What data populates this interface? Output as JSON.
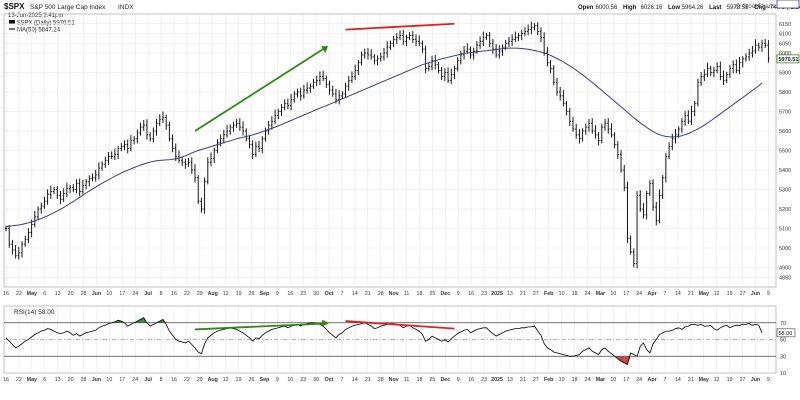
{
  "header": {
    "symbol": "$SPX",
    "name": "S&P 500 Large Cap Index",
    "exchange": "INDX",
    "watermark": "@ StockCharts.com",
    "date_line": "13-Jun-2025 2:41pm",
    "ohlc": [
      {
        "label": "Open",
        "value": "6000.56"
      },
      {
        "label": "High",
        "value": "6026.16"
      },
      {
        "label": "Low",
        "value": "5964.26"
      },
      {
        "label": "Last",
        "value": "5970.51"
      },
      {
        "label": "Chg",
        "value": "-74.75 (-1.24%)"
      }
    ],
    "legend_price": "$SPX (Daily) 5970.51",
    "legend_ma": "MA(50) 5847.24"
  },
  "rsi_panel": {
    "title": "RSI(14) 58.00",
    "last_label": "58.00"
  },
  "colors": {
    "price_bars": "#000000",
    "ma_line": "#3a3a8c",
    "rsi_line": "#000000",
    "rsi_overbought_fill": "#3e7e3e",
    "rsi_oversold_fill": "#c84040",
    "trend_up": "#2f8a14",
    "trend_div": "#e02020",
    "grid": "#e6e6e6",
    "current_price_box": "#2f8a14"
  },
  "chart_data": [
    {
      "type": "ohlc",
      "title": "$SPX S&P 500 Large Cap Index INDX",
      "ylim": [
        4800,
        6200
      ],
      "y_axis_side": "right",
      "y_ticks": [
        4850,
        4900,
        5000,
        5100,
        5200,
        5300,
        5400,
        5500,
        5600,
        5700,
        5800,
        5900,
        6000,
        6050,
        6100,
        6150
      ],
      "last_value_label": "5970.51",
      "ma_last_label": "5847.24",
      "x_ticks": [
        "16",
        "22",
        "May",
        "6",
        "13",
        "20",
        "28",
        "Jun",
        "10",
        "17",
        "24",
        "Jul",
        "8",
        "16",
        "22",
        "29",
        "Aug",
        "12",
        "19",
        "26",
        "Sep",
        "9",
        "16",
        "23",
        "30",
        "Oct",
        "7",
        "14",
        "21",
        "28",
        "Nov",
        "11",
        "18",
        "25",
        "Dec",
        "9",
        "16",
        "23",
        "2025",
        "13",
        "21",
        "27",
        "Feb",
        "10",
        "18",
        "24",
        "Mar",
        "10",
        "17",
        "24",
        "Apr",
        "7",
        "14",
        "21",
        "May",
        "12",
        "19",
        "27",
        "Jun",
        "9"
      ],
      "x_tick_bold": [
        "May",
        "Jun",
        "Jul",
        "Aug",
        "Sep",
        "Oct",
        "Nov",
        "Dec",
        "2025",
        "Feb",
        "Mar",
        "Apr",
        "May",
        "Jun"
      ],
      "close": [
        5100,
        5020,
        4990,
        4960,
        4975,
        5020,
        5045,
        5080,
        5120,
        5160,
        5200,
        5215,
        5240,
        5275,
        5290,
        5300,
        5270,
        5250,
        5280,
        5305,
        5310,
        5300,
        5330,
        5290,
        5320,
        5340,
        5355,
        5360,
        5375,
        5410,
        5430,
        5450,
        5470,
        5470,
        5480,
        5510,
        5520,
        5530,
        5510,
        5550,
        5560,
        5590,
        5620,
        5630,
        5580,
        5560,
        5600,
        5640,
        5660,
        5670,
        5630,
        5560,
        5510,
        5470,
        5450,
        5440,
        5430,
        5440,
        5400,
        5360,
        5240,
        5200,
        5340,
        5440,
        5460,
        5500,
        5540,
        5560,
        5580,
        5600,
        5620,
        5630,
        5640,
        5620,
        5600,
        5560,
        5530,
        5480,
        5520,
        5510,
        5560,
        5600,
        5630,
        5650,
        5680,
        5700,
        5720,
        5740,
        5730,
        5760,
        5790,
        5800,
        5780,
        5810,
        5820,
        5830,
        5850,
        5860,
        5880,
        5870,
        5840,
        5810,
        5790,
        5760,
        5780,
        5790,
        5830,
        5860,
        5880,
        5910,
        5950,
        5990,
        6000,
        5990,
        5980,
        5960,
        5970,
        5980,
        6000,
        6030,
        6050,
        6070,
        6080,
        6090,
        6060,
        6080,
        6090,
        6070,
        6060,
        6050,
        6020,
        5920,
        5930,
        5960,
        5940,
        5910,
        5880,
        5900,
        5860,
        5890,
        5920,
        5960,
        5990,
        6010,
        6020,
        5990,
        6010,
        6040,
        6060,
        6080,
        6090,
        6050,
        6020,
        5990,
        6010,
        6030,
        6050,
        6060,
        6070,
        6080,
        6090,
        6100,
        6110,
        6120,
        6130,
        6140,
        6110,
        6080,
        6000,
        5950,
        5920,
        5850,
        5800,
        5780,
        5740,
        5700,
        5650,
        5610,
        5580,
        5560,
        5600,
        5620,
        5640,
        5600,
        5580,
        5550,
        5620,
        5640,
        5610,
        5580,
        5530,
        5480,
        5400,
        5310,
        5050,
        4980,
        4920,
        5270,
        5200,
        5170,
        5280,
        5330,
        5210,
        5140,
        5270,
        5360,
        5470,
        5520,
        5560,
        5580,
        5610,
        5650,
        5680,
        5650,
        5700,
        5740,
        5850,
        5880,
        5890,
        5920,
        5900,
        5910,
        5930,
        5880,
        5860,
        5890,
        5920,
        5940,
        5910,
        5950,
        5970,
        5980,
        6000,
        6010,
        6040,
        6030,
        6050,
        6040,
        5970
      ],
      "ma50": [
        5110,
        5112,
        5114,
        5116,
        5118,
        5121,
        5125,
        5129,
        5134,
        5139,
        5145,
        5151,
        5158,
        5165,
        5173,
        5181,
        5190,
        5199,
        5208,
        5218,
        5228,
        5238,
        5249,
        5260,
        5271,
        5282,
        5292,
        5302,
        5312,
        5322,
        5332,
        5341,
        5350,
        5359,
        5368,
        5376,
        5384,
        5392,
        5399,
        5406,
        5413,
        5419,
        5425,
        5431,
        5436,
        5440,
        5444,
        5447,
        5449,
        5451,
        5452,
        5453,
        5455,
        5458,
        5462,
        5467,
        5473,
        5480,
        5487,
        5494,
        5500,
        5505,
        5510,
        5515,
        5520,
        5525,
        5530,
        5535,
        5540,
        5545,
        5550,
        5555,
        5560,
        5564,
        5568,
        5572,
        5576,
        5580,
        5585,
        5590,
        5596,
        5602,
        5608,
        5614,
        5620,
        5626,
        5633,
        5640,
        5647,
        5654,
        5661,
        5668,
        5675,
        5682,
        5689,
        5696,
        5703,
        5710,
        5717,
        5724,
        5730,
        5737,
        5744,
        5751,
        5758,
        5765,
        5772,
        5779,
        5786,
        5793,
        5800,
        5807,
        5814,
        5821,
        5828,
        5835,
        5842,
        5849,
        5856,
        5863,
        5870,
        5877,
        5884,
        5891,
        5898,
        5905,
        5912,
        5919,
        5926,
        5933,
        5940,
        5945,
        5950,
        5955,
        5960,
        5965,
        5970,
        5974,
        5978,
        5982,
        5986,
        5990,
        5994,
        5998,
        6000,
        6002,
        6004,
        6006,
        6008,
        6010,
        6012,
        6014,
        6016,
        6018,
        6020,
        6022,
        6024,
        6025,
        6025,
        6025,
        6024,
        6023,
        6021,
        6019,
        6016,
        6013,
        6009,
        6005,
        6000,
        5995,
        5988,
        5980,
        5972,
        5963,
        5954,
        5944,
        5934,
        5923,
        5912,
        5900,
        5888,
        5875,
        5862,
        5849,
        5836,
        5822,
        5808,
        5794,
        5780,
        5766,
        5752,
        5738,
        5724,
        5710,
        5696,
        5682,
        5668,
        5655,
        5642,
        5630,
        5618,
        5607,
        5597,
        5588,
        5581,
        5576,
        5572,
        5570,
        5569,
        5570,
        5572,
        5576,
        5581,
        5587,
        5594,
        5602,
        5611,
        5620,
        5630,
        5641,
        5652,
        5664,
        5676,
        5688,
        5700,
        5712,
        5724,
        5736,
        5748,
        5760,
        5772,
        5784,
        5796,
        5808,
        5820,
        5832,
        5847
      ],
      "trend_lines": [
        {
          "label": "",
          "color": "trend_up",
          "from": {
            "bar": 59,
            "value": 5600
          },
          "to": {
            "bar": 99,
            "value": 6020
          }
        },
        {
          "label": "",
          "color": "trend_div",
          "from": {
            "bar": 106,
            "value": 6120
          },
          "to": {
            "bar": 140,
            "value": 6150
          }
        }
      ]
    },
    {
      "type": "line",
      "title": "RSI(14) 58.00",
      "ylim": [
        10,
        90
      ],
      "y_ticks": [
        10,
        30,
        50,
        70
      ],
      "reference_lines": [
        30,
        50,
        70
      ],
      "rsi": [
        52,
        48,
        44,
        40,
        42,
        45,
        48,
        50,
        53,
        56,
        58,
        60,
        61,
        63,
        62,
        60,
        58,
        57,
        58,
        60,
        58,
        55,
        57,
        54,
        56,
        58,
        59,
        60,
        61,
        64,
        66,
        67,
        69,
        70,
        71,
        73,
        72,
        70,
        66,
        68,
        70,
        72,
        74,
        76,
        70,
        66,
        68,
        70,
        72,
        74,
        68,
        60,
        55,
        50,
        48,
        47,
        46,
        48,
        44,
        40,
        35,
        33,
        45,
        52,
        55,
        58,
        60,
        61,
        62,
        63,
        64,
        63,
        62,
        60,
        58,
        55,
        52,
        48,
        52,
        51,
        55,
        58,
        60,
        62,
        63,
        64,
        65,
        66,
        64,
        66,
        67,
        68,
        66,
        68,
        69,
        70,
        70,
        69,
        68,
        66,
        62,
        58,
        55,
        52,
        56,
        58,
        62,
        64,
        66,
        67,
        68,
        69,
        70,
        68,
        66,
        63,
        64,
        66,
        67,
        68,
        69,
        69,
        68,
        67,
        64,
        66,
        67,
        64,
        62,
        60,
        56,
        48,
        50,
        54,
        52,
        50,
        48,
        50,
        47,
        51,
        54,
        57,
        59,
        61,
        62,
        58,
        60,
        62,
        63,
        64,
        64,
        60,
        57,
        54,
        56,
        58,
        60,
        61,
        62,
        63,
        63,
        64,
        64,
        65,
        65,
        66,
        60,
        55,
        45,
        40,
        38,
        35,
        34,
        33,
        32,
        31,
        30,
        30,
        31,
        32,
        36,
        38,
        40,
        36,
        34,
        32,
        38,
        40,
        36,
        33,
        30,
        27,
        24,
        22,
        20,
        34,
        32,
        30,
        42,
        46,
        38,
        34,
        45,
        50,
        56,
        58,
        60,
        60,
        61,
        63,
        64,
        62,
        65,
        66,
        68,
        68,
        67,
        68,
        66,
        66,
        67,
        63,
        61,
        64,
        66,
        67,
        64,
        66,
        67,
        67,
        68,
        68,
        69,
        67,
        68,
        67,
        58
      ],
      "x_ticks": [
        "16",
        "22",
        "May",
        "6",
        "13",
        "20",
        "28",
        "Jun",
        "10",
        "17",
        "24",
        "Jul",
        "8",
        "16",
        "22",
        "29",
        "Aug",
        "12",
        "19",
        "26",
        "Sep",
        "9",
        "16",
        "23",
        "30",
        "Oct",
        "7",
        "14",
        "21",
        "28",
        "Nov",
        "11",
        "18",
        "25",
        "Dec",
        "9",
        "16",
        "23",
        "2025",
        "13",
        "21",
        "27",
        "Feb",
        "10",
        "18",
        "24",
        "Mar",
        "10",
        "17",
        "24",
        "Apr",
        "7",
        "14",
        "21",
        "May",
        "12",
        "19",
        "27",
        "Jun",
        "9"
      ],
      "trend_lines": [
        {
          "label": "",
          "color": "trend_up",
          "from": {
            "bar": 59,
            "value": 62
          },
          "to": {
            "bar": 99,
            "value": 69
          }
        },
        {
          "label": "",
          "color": "trend_div",
          "from": {
            "bar": 106,
            "value": 72
          },
          "to": {
            "bar": 140,
            "value": 63
          }
        }
      ]
    }
  ]
}
